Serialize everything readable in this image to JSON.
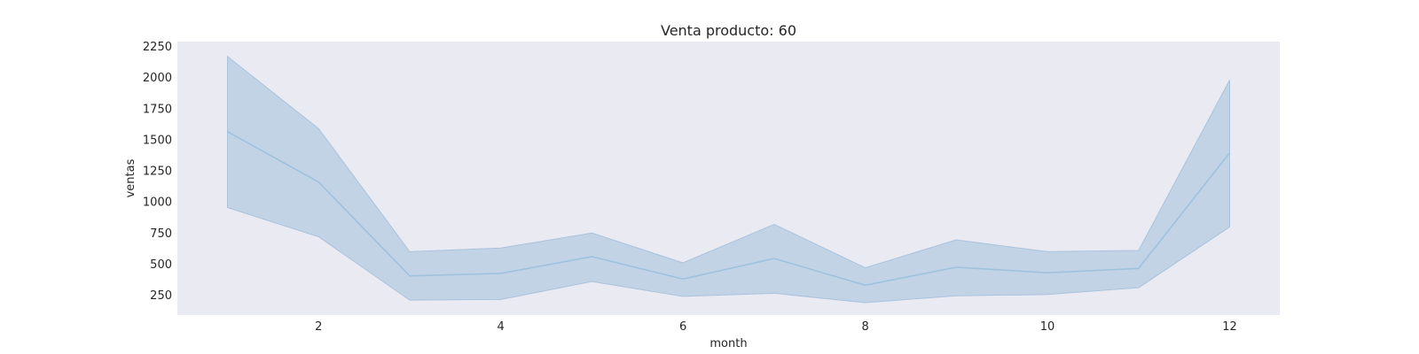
{
  "chart_data": {
    "type": "line",
    "title": "Venta producto: 60",
    "xlabel": "month",
    "ylabel": "ventas",
    "xlim": [
      0.45,
      12.55
    ],
    "ylim": [
      90,
      2290
    ],
    "xticks": [
      2,
      4,
      6,
      8,
      10,
      12
    ],
    "yticks": [
      250,
      500,
      750,
      1000,
      1250,
      1500,
      1750,
      2000,
      2250
    ],
    "grid": false,
    "series": [
      {
        "x": [
          1,
          2,
          3,
          4,
          5,
          6,
          7,
          8,
          9,
          10,
          11,
          12
        ],
        "values": [
          1565,
          1160,
          405,
          425,
          560,
          380,
          545,
          330,
          475,
          430,
          465,
          1395
        ],
        "ci_upper": [
          2170,
          1590,
          600,
          630,
          750,
          510,
          820,
          470,
          695,
          600,
          610,
          1980
        ],
        "ci_lower": [
          955,
          720,
          210,
          215,
          360,
          240,
          265,
          190,
          245,
          255,
          310,
          800
        ]
      }
    ],
    "colors": {
      "plot_background": "#eaeaf2",
      "line": "#9ec2dd",
      "band": "#a9c3dd"
    }
  }
}
